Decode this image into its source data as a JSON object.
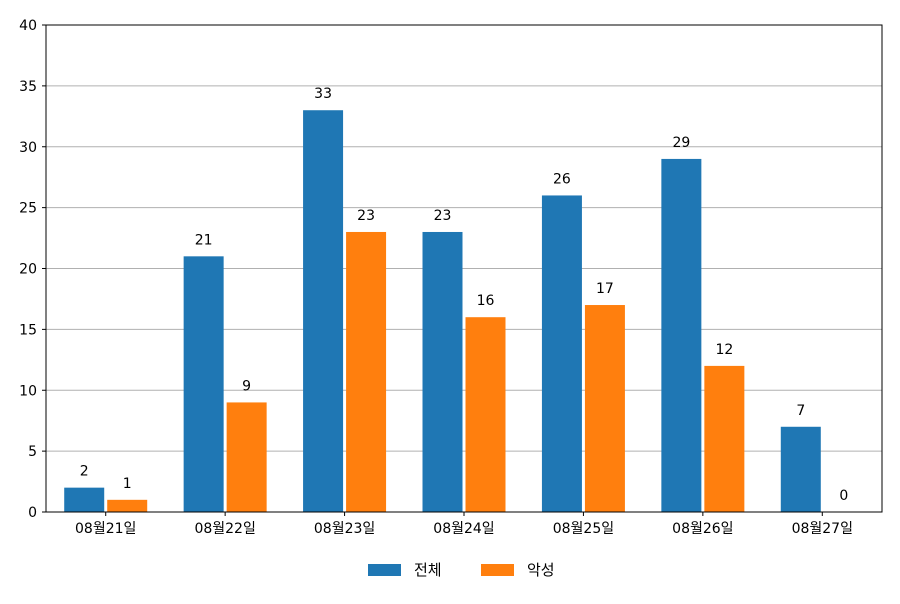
{
  "chart_data": {
    "type": "bar",
    "categories": [
      "08월21일",
      "08월22일",
      "08월23일",
      "08월24일",
      "08월25일",
      "08월26일",
      "08월27일"
    ],
    "series": [
      {
        "name": "전체",
        "values": [
          2,
          21,
          33,
          23,
          26,
          29,
          7
        ],
        "color": "#1f77b4"
      },
      {
        "name": "악성",
        "values": [
          1,
          9,
          23,
          16,
          17,
          12,
          0
        ],
        "color": "#ff7f0e"
      }
    ],
    "ylim": [
      0,
      40
    ],
    "yticks": [
      0,
      5,
      10,
      15,
      20,
      25,
      30,
      35,
      40
    ],
    "grid": "horizontal",
    "legend": "bottom-center",
    "data_labels": true
  }
}
